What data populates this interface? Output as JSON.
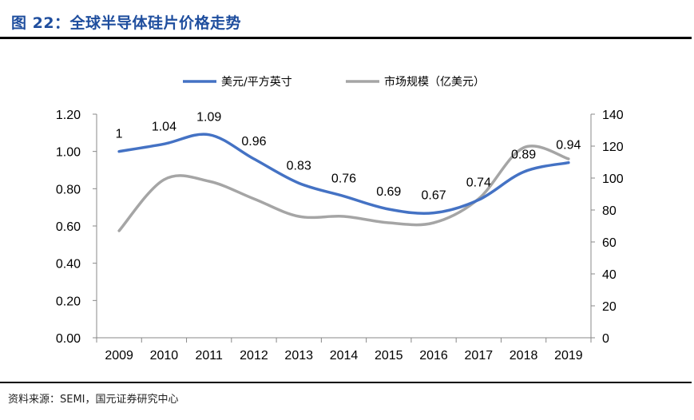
{
  "figure": {
    "title": "图 22：全球半导体硅片价格走势",
    "source": "资料来源：SEMI，国元证券研究中心"
  },
  "chart_data": {
    "type": "line",
    "categories": [
      "2009",
      "2010",
      "2011",
      "2012",
      "2013",
      "2014",
      "2015",
      "2016",
      "2017",
      "2018",
      "2019"
    ],
    "series": [
      {
        "name": "美元/平方英寸",
        "axis": "left",
        "color": "#4472c4",
        "values": [
          1.0,
          1.04,
          1.09,
          0.96,
          0.83,
          0.76,
          0.69,
          0.67,
          0.74,
          0.89,
          0.94
        ],
        "labels": [
          "1",
          "1.04",
          "1.09",
          "0.96",
          "0.83",
          "0.76",
          "0.69",
          "0.67",
          "0.74",
          "0.89",
          "0.94"
        ]
      },
      {
        "name": "市场规模（亿美元）",
        "axis": "right",
        "color": "#a5a5a5",
        "values": [
          67,
          99,
          98,
          87,
          76,
          76,
          72,
          72,
          87,
          119,
          112
        ]
      }
    ],
    "y_left": {
      "ylim": [
        0,
        1.2
      ],
      "ticks": [
        "0.00",
        "0.20",
        "0.40",
        "0.60",
        "0.80",
        "1.00",
        "1.20"
      ]
    },
    "y_right": {
      "ylim": [
        0,
        140
      ],
      "ticks": [
        "0",
        "20",
        "40",
        "60",
        "80",
        "100",
        "120",
        "140"
      ]
    },
    "grid": false,
    "legend": "top-center"
  }
}
